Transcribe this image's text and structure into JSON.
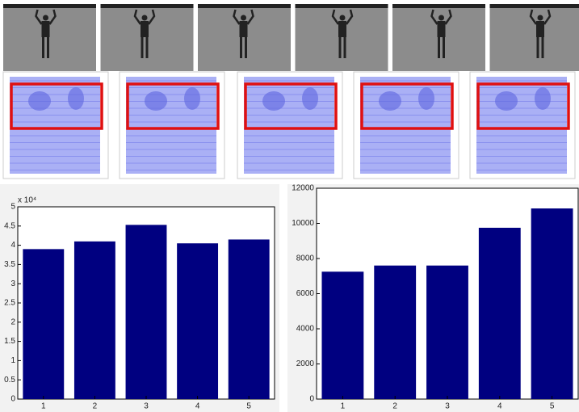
{
  "chart_data": [
    {
      "type": "bar",
      "categories": [
        "1",
        "2",
        "3",
        "4",
        "5"
      ],
      "values": [
        3.9,
        4.1,
        4.53,
        4.05,
        4.15
      ],
      "color": "#000080",
      "ylim": [
        0,
        5
      ],
      "yticks": [
        0,
        0.5,
        1,
        1.5,
        2,
        2.5,
        3,
        3.5,
        4,
        4.5,
        5
      ],
      "y_multiplier": "x 10⁴"
    },
    {
      "type": "bar",
      "categories": [
        "1",
        "2",
        "3",
        "4",
        "5"
      ],
      "values": [
        7250,
        7600,
        7600,
        9750,
        10850
      ],
      "color": "#000080",
      "ylim": [
        0,
        12000
      ],
      "yticks": [
        0,
        2000,
        4000,
        6000,
        8000,
        10000,
        12000
      ]
    }
  ]
}
